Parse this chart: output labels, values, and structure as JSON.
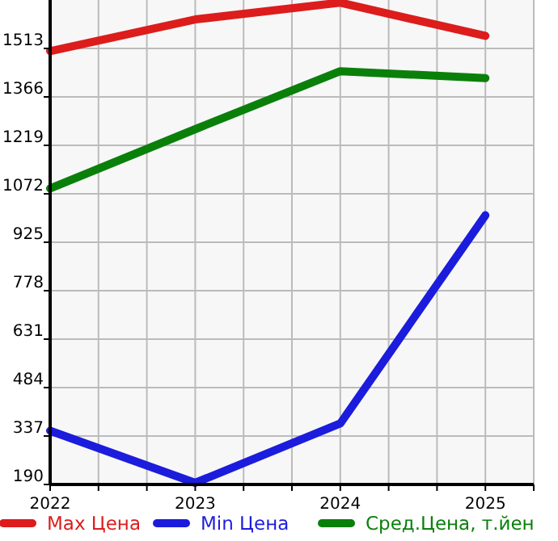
{
  "chart_data": {
    "type": "line",
    "x": [
      2022,
      2023,
      2024,
      2025
    ],
    "xlim": [
      2022,
      2025.3333
    ],
    "xticks": [
      2022,
      {
        "value": 2022.3333,
        "label": null
      },
      {
        "value": 2022.6667,
        "label": null
      },
      2023,
      {
        "value": 2023.3333,
        "label": null
      },
      {
        "value": 2023.6667,
        "label": null
      },
      2024,
      {
        "value": 2024.3333,
        "label": null
      },
      {
        "value": 2024.6667,
        "label": null
      },
      2025,
      {
        "value": 2025.3333,
        "label": null
      }
    ],
    "ylim": [
      190,
      1660
    ],
    "yticks": [
      190,
      337,
      484,
      631,
      778,
      925,
      1072,
      1219,
      1366,
      1513
    ],
    "grid": true,
    "legend": "bottom",
    "marker": "none",
    "line_style": "solid",
    "series": [
      {
        "name": "Max Цена",
        "color": "#dd1c1c",
        "values": [
          1505,
          1601,
          1652,
          1551
        ]
      },
      {
        "name": "Min Цена",
        "color": "#1c1cdd",
        "values": [
          353,
          195,
          375,
          1007
        ]
      },
      {
        "name": "Сред.Цена, т.йен",
        "color": "#0a800a",
        "values": [
          1088,
          1268,
          1444,
          1423
        ]
      }
    ]
  }
}
